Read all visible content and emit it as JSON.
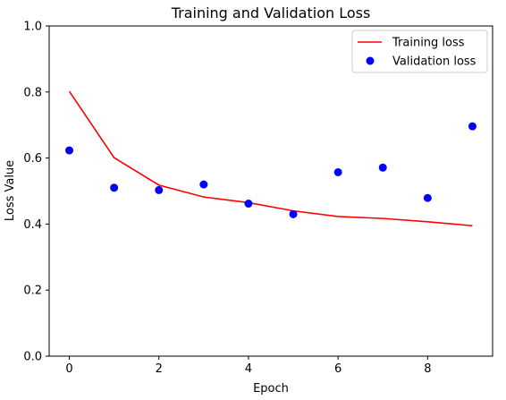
{
  "chart_data": {
    "type": "line",
    "title": "Training and Validation Loss",
    "xlabel": "Epoch",
    "ylabel": "Loss Value",
    "xlim": [
      -0.45,
      9.45
    ],
    "ylim": [
      0,
      1.0
    ],
    "xticks": [
      0,
      2,
      4,
      6,
      8
    ],
    "xtick_labels": [
      "0",
      "2",
      "4",
      "6",
      "8"
    ],
    "yticks": [
      0.0,
      0.2,
      0.4,
      0.6,
      0.8,
      1.0
    ],
    "ytick_labels": [
      "0.0",
      "0.2",
      "0.4",
      "0.6",
      "0.8",
      "1.0"
    ],
    "grid": false,
    "legend_position": "upper right",
    "x": [
      0,
      1,
      2,
      3,
      4,
      5,
      6,
      7,
      8,
      9
    ],
    "series": [
      {
        "name": "Training loss",
        "style": "line",
        "color": "#ff0000",
        "values": [
          0.802,
          0.601,
          0.518,
          0.482,
          0.465,
          0.44,
          0.423,
          0.417,
          0.407,
          0.395
        ]
      },
      {
        "name": "Validation loss",
        "style": "markers",
        "color": "#0000ff",
        "values": [
          0.623,
          0.51,
          0.503,
          0.52,
          0.462,
          0.43,
          0.557,
          0.571,
          0.479,
          0.696
        ]
      }
    ]
  }
}
